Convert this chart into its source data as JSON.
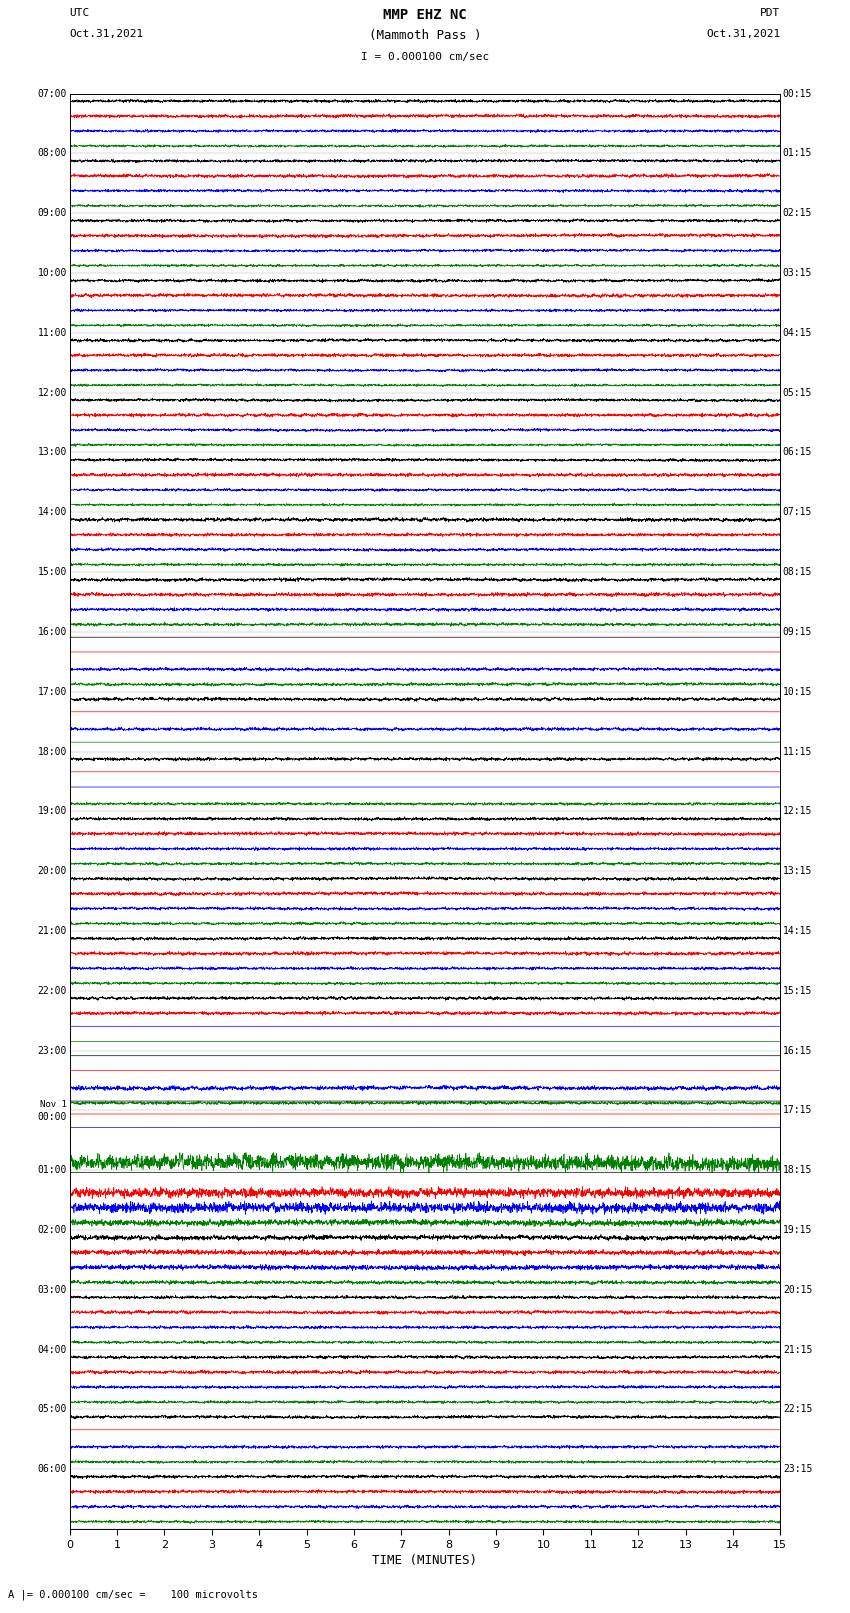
{
  "title_line1": "MMP EHZ NC",
  "title_line2": "(Mammoth Pass )",
  "scale_label": "I = 0.000100 cm/sec",
  "utc_label": "UTC",
  "utc_date": "Oct.31,2021",
  "pdt_label": "PDT",
  "pdt_date": "Oct.31,2021",
  "xlabel": "TIME (MINUTES)",
  "bg_color": "#ffffff",
  "trace_colors": [
    "black",
    "red",
    "blue",
    "green"
  ],
  "num_groups": 24,
  "minutes_per_row": 15,
  "left_times_utc": [
    "07:00",
    "08:00",
    "09:00",
    "10:00",
    "11:00",
    "12:00",
    "13:00",
    "14:00",
    "15:00",
    "16:00",
    "17:00",
    "18:00",
    "19:00",
    "20:00",
    "21:00",
    "22:00",
    "23:00",
    "Nov 1\n00:00",
    "01:00",
    "02:00",
    "03:00",
    "04:00",
    "05:00",
    "06:00"
  ],
  "right_times_pdt": [
    "00:15",
    "01:15",
    "02:15",
    "03:15",
    "04:15",
    "05:15",
    "06:15",
    "07:15",
    "08:15",
    "09:15",
    "10:15",
    "11:15",
    "12:15",
    "13:15",
    "14:15",
    "15:15",
    "16:15",
    "17:15",
    "18:15",
    "19:15",
    "20:15",
    "21:15",
    "22:15",
    "23:15"
  ],
  "noise_seed": 12345
}
